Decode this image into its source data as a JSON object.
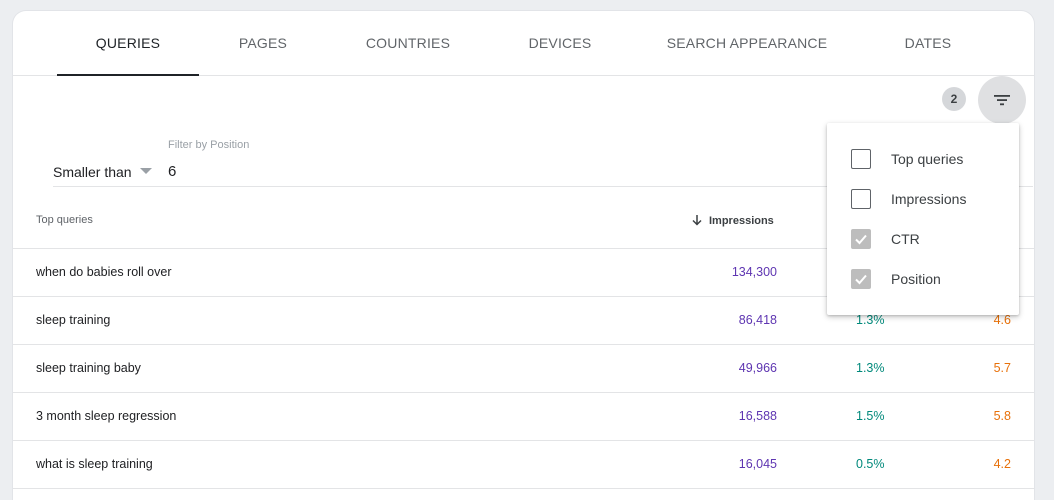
{
  "tabs": [
    {
      "label": "QUERIES"
    },
    {
      "label": "PAGES"
    },
    {
      "label": "COUNTRIES"
    },
    {
      "label": "DEVICES"
    },
    {
      "label": "SEARCH APPEARANCE"
    },
    {
      "label": "DATES"
    }
  ],
  "active_tab": "QUERIES",
  "filter_count": "2",
  "position_filter": {
    "label": "Filter by Position",
    "operator": "Smaller than",
    "value": "6"
  },
  "columns": {
    "query": "Top queries",
    "impressions": "Impressions"
  },
  "rows": [
    {
      "query": "when do babies roll over",
      "impressions": "134,300",
      "ctr": "",
      "position": ""
    },
    {
      "query": "sleep training",
      "impressions": "86,418",
      "ctr": "1.3%",
      "position": "4.6"
    },
    {
      "query": "sleep training baby",
      "impressions": "49,966",
      "ctr": "1.3%",
      "position": "5.7"
    },
    {
      "query": "3 month sleep regression",
      "impressions": "16,588",
      "ctr": "1.5%",
      "position": "5.8"
    },
    {
      "query": "what is sleep training",
      "impressions": "16,045",
      "ctr": "0.5%",
      "position": "4.2"
    }
  ],
  "column_menu": [
    {
      "label": "Top queries",
      "checked": false
    },
    {
      "label": "Impressions",
      "checked": false
    },
    {
      "label": "CTR",
      "checked": true
    },
    {
      "label": "Position",
      "checked": true
    }
  ],
  "icons": {
    "filter": "filter-list-icon",
    "sort": "arrow-down-icon",
    "check": "check-icon"
  },
  "colors": {
    "impressions": "#5e35b1",
    "ctr": "#00897b",
    "position": "#e8710a"
  }
}
